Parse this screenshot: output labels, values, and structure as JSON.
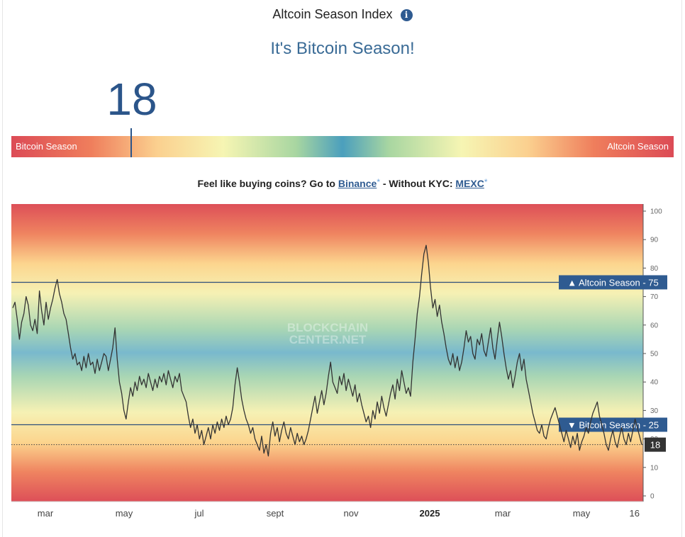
{
  "header": {
    "title": "Altcoin Season Index",
    "info_glyph": "i",
    "headline": "It's Bitcoin Season!",
    "current_value": "18"
  },
  "scale_bar": {
    "left_label": "Bitcoin Season",
    "right_label": "Altcoin Season",
    "marker_value": 18
  },
  "promo": {
    "text_before": "Feel like buying coins? Go to",
    "link1_label": "Binance",
    "link_star": "*",
    "text_middle": "- Without KYC:",
    "link2_label": "MEXC"
  },
  "chart_data": {
    "type": "line",
    "ylim": [
      0,
      100
    ],
    "y_ticks": [
      0,
      10,
      20,
      30,
      40,
      50,
      60,
      70,
      80,
      90,
      100
    ],
    "x_tick_labels": [
      "mar",
      "may",
      "jul",
      "sept",
      "nov",
      "2025",
      "mar",
      "may",
      "16"
    ],
    "watermark": [
      "BLOCKCHAIN",
      "CENTER.NET"
    ],
    "reference_lines": [
      {
        "value": 75,
        "label": "▲ Altcoin Season - 75"
      },
      {
        "value": 25,
        "label": "▼ Bitcoin Season - 25"
      }
    ],
    "current": {
      "value": 18,
      "label": "18"
    },
    "series": [
      {
        "values": [
          66,
          68,
          62,
          55,
          61,
          64,
          70,
          67,
          60,
          58,
          62,
          57,
          72,
          65,
          60,
          68,
          62,
          66,
          69,
          73,
          76,
          71,
          68,
          64,
          62,
          57,
          52,
          48,
          50,
          46,
          47,
          44,
          49,
          45,
          50,
          46,
          47,
          43,
          48,
          44,
          47,
          50,
          49,
          44,
          48,
          52,
          59,
          48,
          40,
          36,
          30,
          27,
          33,
          38,
          35,
          40,
          37,
          42,
          39,
          41,
          38,
          43,
          40,
          37,
          41,
          38,
          42,
          40,
          43,
          39,
          44,
          41,
          38,
          42,
          40,
          43,
          37,
          35,
          33,
          28,
          24,
          27,
          22,
          25,
          20,
          23,
          18,
          21,
          24,
          20,
          25,
          22,
          26,
          23,
          27,
          24,
          28,
          25,
          27,
          31,
          39,
          45,
          40,
          34,
          30,
          27,
          25,
          22,
          24,
          20,
          18,
          16,
          21,
          15,
          18,
          14,
          22,
          26,
          21,
          24,
          19,
          23,
          26,
          22,
          20,
          24,
          21,
          18,
          22,
          19,
          21,
          18,
          20,
          23,
          27,
          31,
          35,
          29,
          33,
          37,
          32,
          36,
          42,
          47,
          40,
          38,
          36,
          42,
          39,
          43,
          37,
          41,
          38,
          35,
          39,
          33,
          36,
          32,
          29,
          26,
          28,
          24,
          30,
          27,
          33,
          29,
          35,
          31,
          28,
          32,
          36,
          39,
          34,
          41,
          37,
          44,
          40,
          36,
          38,
          35,
          47,
          55,
          64,
          70,
          78,
          85,
          88,
          82,
          73,
          66,
          69,
          63,
          67,
          61,
          57,
          52,
          48,
          46,
          50,
          45,
          49,
          44,
          47,
          52,
          58,
          54,
          56,
          50,
          48,
          55,
          53,
          57,
          51,
          49,
          54,
          59,
          52,
          48,
          55,
          61,
          56,
          50,
          45,
          41,
          44,
          38,
          42,
          47,
          50,
          44,
          48,
          41,
          37,
          33,
          29,
          26,
          23,
          22,
          25,
          21,
          20,
          24,
          27,
          29,
          31,
          28,
          25,
          22,
          19,
          23,
          20,
          17,
          21,
          18,
          22,
          16,
          19,
          21,
          24,
          22,
          26,
          29,
          31,
          33,
          28,
          25,
          22,
          18,
          16,
          20,
          23,
          19,
          17,
          21,
          24,
          20,
          18,
          22,
          19,
          23,
          27,
          24,
          21,
          18
        ]
      }
    ]
  }
}
